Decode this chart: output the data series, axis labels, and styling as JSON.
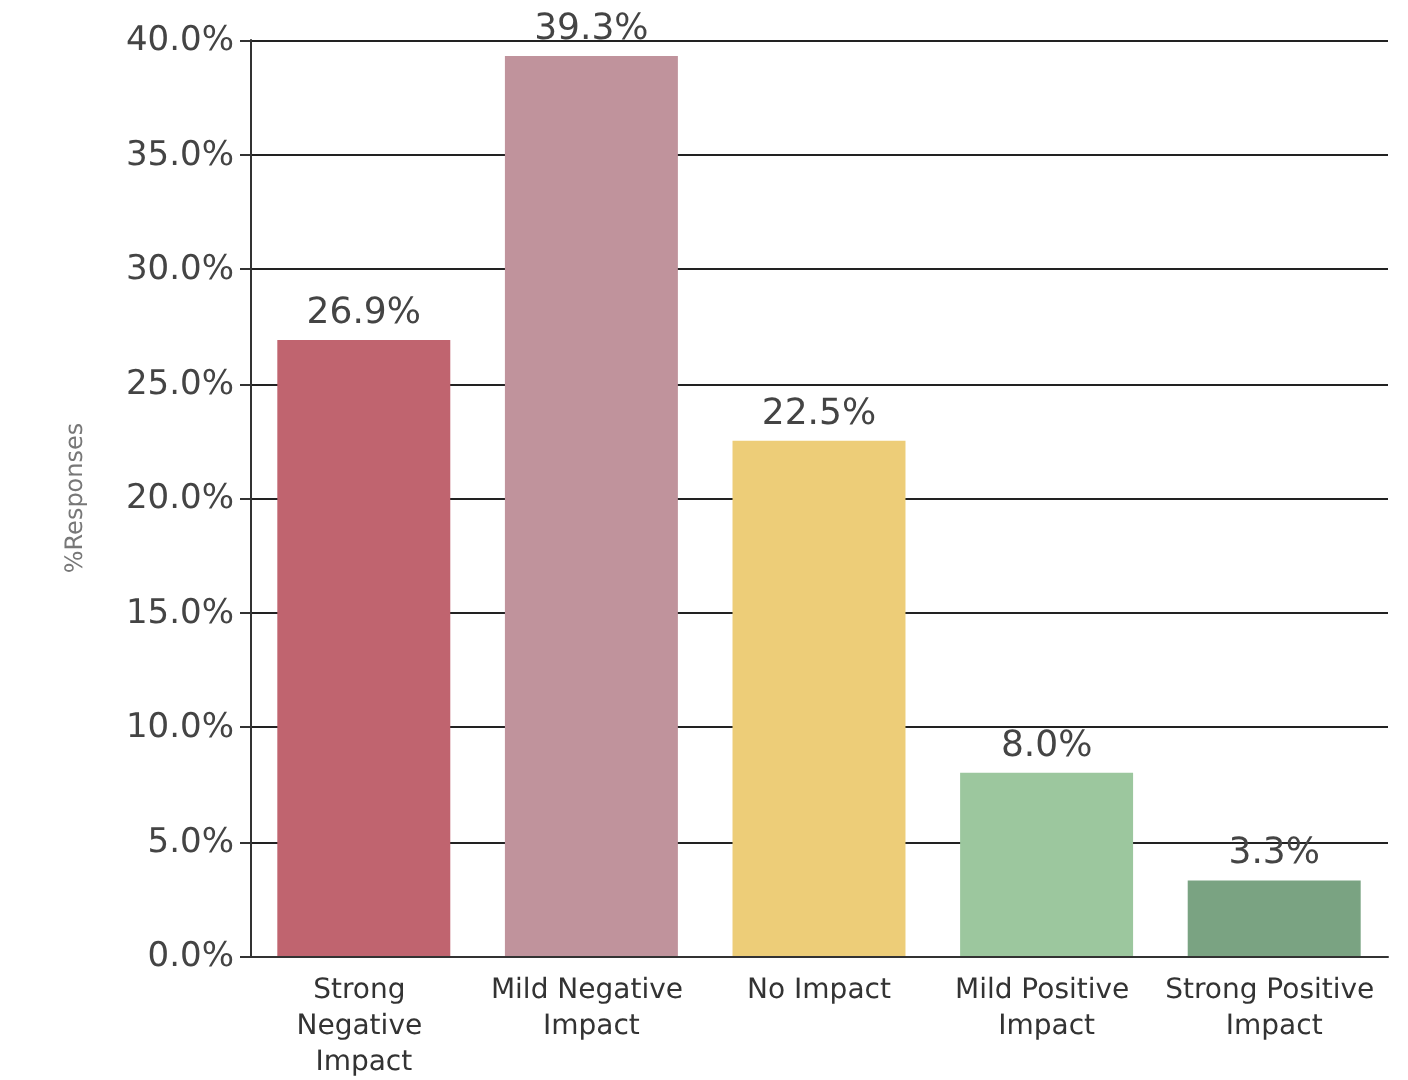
{
  "chart_data": {
    "type": "bar",
    "ylabel": "%Responses",
    "categories": [
      "Strong Negative Impact",
      "Mild Negative Impact",
      "No Impact",
      "Mild Positive Impact",
      "Strong Positive Impact"
    ],
    "values": [
      26.9,
      39.3,
      22.5,
      8.0,
      3.3
    ],
    "value_labels": [
      "26.9%",
      "39.3%",
      "22.5%",
      "8.0%",
      "3.3%"
    ],
    "colors": [
      "#c0646f",
      "#c0939c",
      "#edcd78",
      "#9cc79e",
      "#7aa382"
    ],
    "ylim": [
      0,
      40
    ],
    "yticks": [
      {
        "value": 0,
        "label": "0.0%"
      },
      {
        "value": 5,
        "label": "5.0%"
      },
      {
        "value": 10,
        "label": "10.0%"
      },
      {
        "value": 15,
        "label": "15.0%"
      },
      {
        "value": 20,
        "label": "20.0%"
      },
      {
        "value": 25,
        "label": "25.0%"
      },
      {
        "value": 30,
        "label": "30.0%"
      },
      {
        "value": 35,
        "label": "35.0%"
      },
      {
        "value": 40,
        "label": "40.0%"
      }
    ],
    "grid": "y"
  }
}
